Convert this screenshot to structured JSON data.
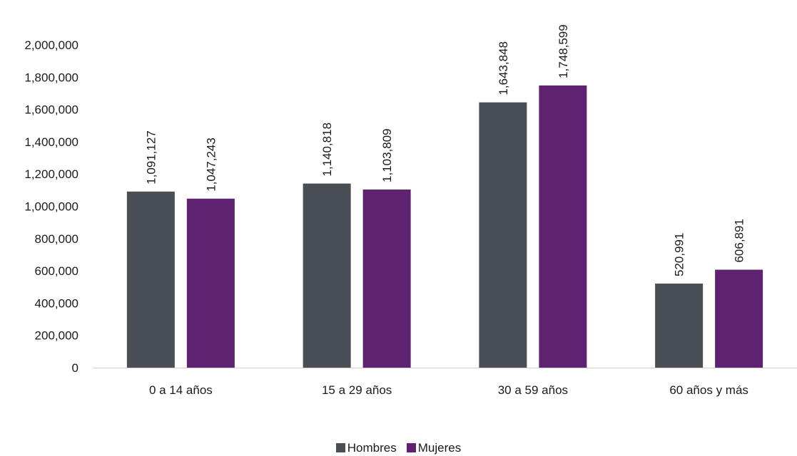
{
  "chart_data": {
    "type": "bar",
    "title": "",
    "xlabel": "",
    "ylabel": "",
    "categories": [
      "0 a 14 años",
      "15 a 29 años",
      "30 a 59 años",
      "60 años y más"
    ],
    "series": [
      {
        "name": "Hombres",
        "color": "#4a4f55",
        "values": [
          1091127,
          1140818,
          1643848,
          520991
        ],
        "labels": [
          "1,091,127",
          "1,140,818",
          "1,643,848",
          "520,991"
        ]
      },
      {
        "name": "Mujeres",
        "color": "#5e2270",
        "values": [
          1047243,
          1103809,
          1748599,
          606891
        ],
        "labels": [
          "1,047,243",
          "1,103,809",
          "1,748,599",
          "606,891"
        ]
      }
    ],
    "ylim": [
      0,
      2000000
    ],
    "yticks": [
      0,
      200000,
      400000,
      600000,
      800000,
      1000000,
      1200000,
      1400000,
      1600000,
      1800000,
      2000000
    ],
    "ytick_labels": [
      "0",
      "200,000",
      "400,000",
      "600,000",
      "800,000",
      "1,000,000",
      "1,200,000",
      "1,400,000",
      "1,600,000",
      "1,800,000",
      "2,000,000"
    ],
    "grid": false,
    "legend_position": "bottom-center"
  }
}
